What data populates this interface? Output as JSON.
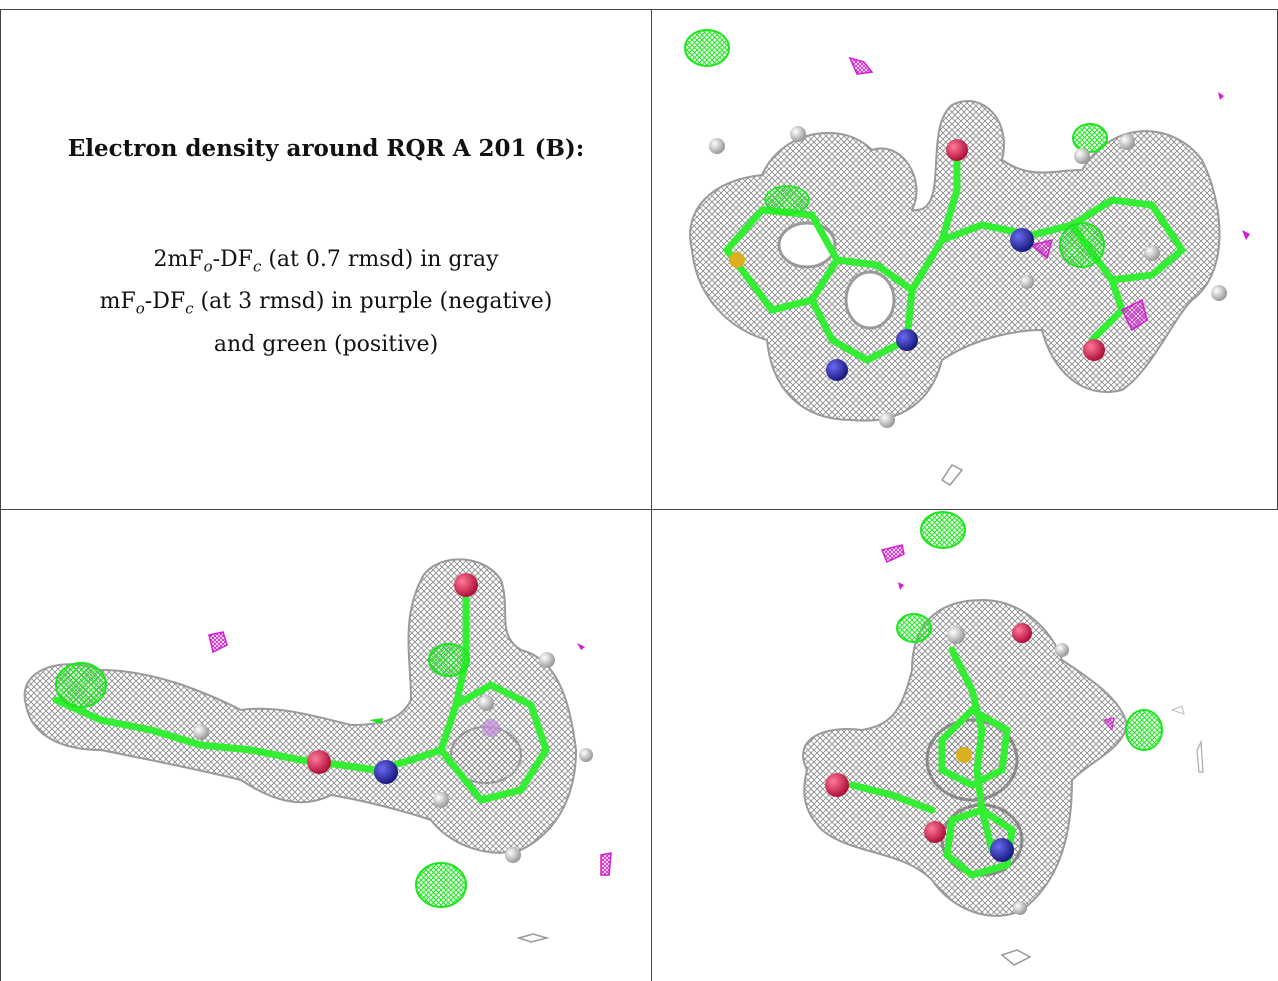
{
  "caption": {
    "title": "Electron density around RQR A 201 (B):",
    "line1": {
      "pre": "2mF",
      "sub1": "o",
      "mid": "-DF",
      "sub2": "c",
      "post": " (at 0.7 rmsd) in gray"
    },
    "line2": {
      "pre": "mF",
      "sub1": "o",
      "mid": "-DF",
      "sub2": "c",
      "post": " (at 3 rmsd) in purple (negative)"
    },
    "line3": "and green (positive)"
  },
  "colors": {
    "mesh_gray": "#9a9a9a",
    "mesh_green": "#22ee22",
    "mesh_purple": "#dd22dd",
    "carbon": "#33ee33",
    "nitrogen": "#2a2aa8",
    "oxygen": "#e0204a",
    "sulfur": "#d8b020",
    "hydrogen": "#e8e8e8"
  },
  "panels": [
    {
      "name": "view-top-right",
      "icon": "electron-density-map-icon"
    },
    {
      "name": "view-bottom-left",
      "icon": "electron-density-map-icon"
    },
    {
      "name": "view-bottom-right",
      "icon": "electron-density-map-icon"
    }
  ]
}
